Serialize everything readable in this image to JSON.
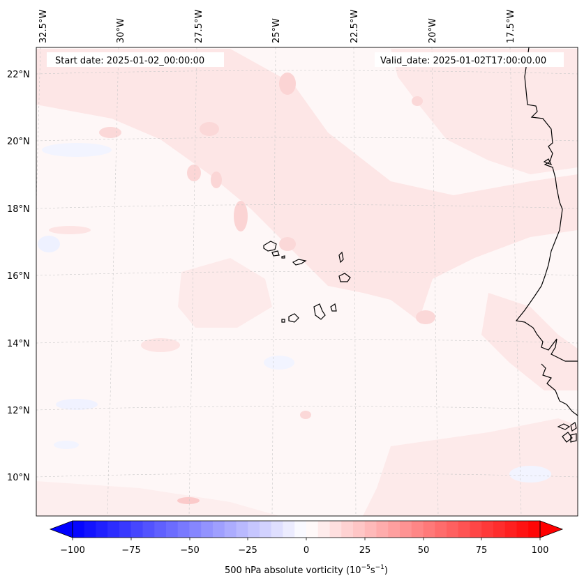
{
  "header": {
    "start_date": "Start date: 2025-01-02_00:00:00",
    "valid_date": "Valid_date: 2025-01-02T17:00:00.00"
  },
  "map": {
    "lon_labels": [
      "32.5°W",
      "30°W",
      "27.5°W",
      "25°W",
      "22.5°W",
      "20°W",
      "17.5°W"
    ],
    "lat_labels": [
      "22°N",
      "20°N",
      "18°N",
      "16°N",
      "14°N",
      "12°N",
      "10°N"
    ],
    "gridlines": "dashed",
    "field": "500 hPa absolute vorticity",
    "region": "Cabo Verde and West African coast"
  },
  "colorbar": {
    "ticks": [
      "−100",
      "−75",
      "−50",
      "−25",
      "0",
      "25",
      "50",
      "75",
      "100"
    ],
    "label": "500 hPa absolute vorticity (10",
    "label_exp1": "−5",
    "label_mid": "s",
    "label_exp2": "−1",
    "label_end": ")",
    "min": -100,
    "max": 100,
    "colormap": "bwr",
    "low_color": "#0000ff",
    "mid_color": "#ffffff",
    "high_color": "#ff0000"
  }
}
